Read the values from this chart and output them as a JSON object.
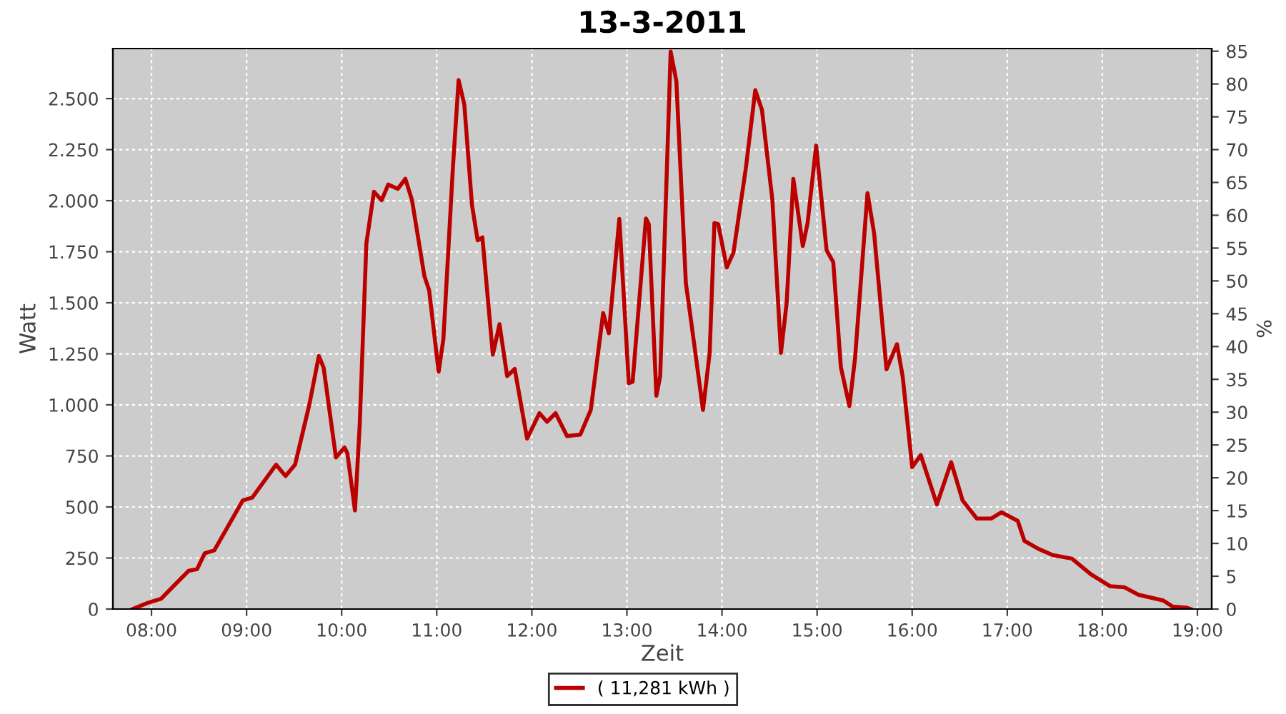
{
  "chart_data": {
    "type": "line",
    "title": "13-3-2011",
    "xlabel": "Zeit",
    "ylabel": "Watt",
    "y2label": "%",
    "xlim": [
      7.594,
      19.15
    ],
    "ylim": [
      0,
      2745
    ],
    "y2lim": [
      0,
      85.4
    ],
    "xticks": [
      {
        "value": 8,
        "label": "08:00"
      },
      {
        "value": 9,
        "label": "09:00"
      },
      {
        "value": 10,
        "label": "10:00"
      },
      {
        "value": 11,
        "label": "11:00"
      },
      {
        "value": 12,
        "label": "12:00"
      },
      {
        "value": 13,
        "label": "13:00"
      },
      {
        "value": 14,
        "label": "14:00"
      },
      {
        "value": 15,
        "label": "15:00"
      },
      {
        "value": 16,
        "label": "16:00"
      },
      {
        "value": 17,
        "label": "17:00"
      },
      {
        "value": 18,
        "label": "18:00"
      },
      {
        "value": 19,
        "label": "19:00"
      }
    ],
    "yticks": [
      0,
      250,
      500,
      750,
      {
        "value": 1000,
        "label": "1.000"
      },
      {
        "value": 1250,
        "label": "1.250"
      },
      {
        "value": 1500,
        "label": "1.500"
      },
      {
        "value": 1750,
        "label": "1.750"
      },
      {
        "value": 2000,
        "label": "2.000"
      },
      {
        "value": 2250,
        "label": "2.250"
      },
      {
        "value": 2500,
        "label": "2.500"
      }
    ],
    "y2ticks": [
      0,
      5,
      10,
      15,
      20,
      25,
      30,
      35,
      40,
      45,
      50,
      55,
      60,
      65,
      70,
      75,
      80,
      85
    ],
    "grid": true,
    "legend": "bottom",
    "series": [
      {
        "name": "( 11,281 kWh )",
        "color": "#bb0000",
        "x": [
          7.8,
          7.96,
          8.1,
          8.39,
          8.48,
          8.56,
          8.66,
          8.96,
          9.06,
          9.31,
          9.41,
          9.51,
          9.66,
          9.76,
          9.81,
          9.94,
          10.03,
          10.06,
          10.14,
          10.19,
          10.26,
          10.34,
          10.42,
          10.49,
          10.59,
          10.67,
          10.74,
          10.87,
          10.92,
          11.02,
          11.07,
          11.17,
          11.23,
          11.29,
          11.37,
          11.43,
          11.48,
          11.59,
          11.66,
          11.74,
          11.82,
          11.95,
          12.08,
          12.16,
          12.25,
          12.37,
          12.51,
          12.62,
          12.75,
          12.81,
          12.92,
          13.02,
          13.06,
          13.2,
          13.23,
          13.31,
          13.35,
          13.46,
          13.52,
          13.62,
          13.68,
          13.8,
          13.87,
          13.92,
          13.96,
          14.05,
          14.12,
          14.25,
          14.35,
          14.42,
          14.53,
          14.62,
          14.68,
          14.75,
          14.85,
          14.9,
          14.99,
          15.1,
          15.17,
          15.25,
          15.34,
          15.4,
          15.53,
          15.6,
          15.73,
          15.84,
          15.9,
          16.0,
          16.09,
          16.26,
          16.41,
          16.53,
          16.68,
          16.83,
          16.94,
          17.11,
          17.18,
          17.33,
          17.48,
          17.68,
          17.88,
          18.08,
          18.23,
          18.38,
          18.64,
          18.74,
          18.88,
          18.93
        ],
        "values": [
          0,
          30,
          50,
          187,
          196,
          273,
          287,
          532,
          546,
          707,
          651,
          707,
          1001,
          1239,
          1183,
          742,
          791,
          763,
          483,
          903,
          1792,
          2044,
          2002,
          2079,
          2058,
          2107,
          2002,
          1631,
          1561,
          1162,
          1323,
          2163,
          2590,
          2471,
          1981,
          1806,
          1820,
          1246,
          1395,
          1141,
          1176,
          835,
          959,
          917,
          959,
          847,
          854,
          975,
          1449,
          1351,
          1911,
          1106,
          1113,
          1913,
          1885,
          1045,
          1141,
          2730,
          2585,
          1596,
          1393,
          975,
          1253,
          1890,
          1885,
          1673,
          1745,
          2156,
          2541,
          2445,
          2002,
          1255,
          1500,
          2107,
          1778,
          1890,
          2270,
          1757,
          1699,
          1185,
          994,
          1232,
          2037,
          1839,
          1174,
          1297,
          1139,
          695,
          754,
          513,
          719,
          532,
          443,
          443,
          474,
          432,
          334,
          294,
          264,
          247,
          170,
          112,
          107,
          70,
          42,
          12,
          7,
          0
        ]
      }
    ]
  }
}
